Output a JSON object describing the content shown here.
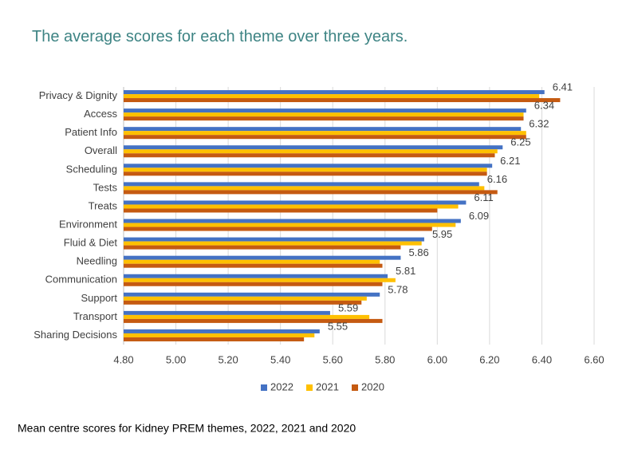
{
  "chart_data": {
    "type": "bar",
    "orientation": "horizontal",
    "title": "The average scores for each theme over three years.",
    "caption": "Mean centre scores for Kidney PREM themes, 2022, 2021 and 2020",
    "categories": [
      "Privacy & Dignity",
      "Access",
      "Patient Info",
      "Overall",
      "Scheduling",
      "Tests",
      "Treats",
      "Environment",
      "Fluid & Diet",
      "Needling",
      "Communication",
      "Support",
      "Transport",
      "Sharing Decisions"
    ],
    "series": [
      {
        "name": "2022",
        "color": "#4472c4",
        "values": [
          6.41,
          6.34,
          6.32,
          6.25,
          6.21,
          6.16,
          6.11,
          6.09,
          5.95,
          5.86,
          5.81,
          5.78,
          5.59,
          5.55
        ]
      },
      {
        "name": "2021",
        "color": "#ffc000",
        "values": [
          6.39,
          6.33,
          6.34,
          6.23,
          6.19,
          6.18,
          6.08,
          6.07,
          5.94,
          5.78,
          5.84,
          5.73,
          5.74,
          5.53
        ]
      },
      {
        "name": "2020",
        "color": "#c55a11",
        "values": [
          6.47,
          6.33,
          6.34,
          6.22,
          6.19,
          6.23,
          6.0,
          5.98,
          5.86,
          5.79,
          5.79,
          5.71,
          5.79,
          5.49
        ]
      }
    ],
    "data_labels_series": "2022",
    "xlim": [
      4.8,
      6.6
    ],
    "xticks": [
      {
        "value": 4.8,
        "label": "4.80"
      },
      {
        "value": 5.0,
        "label": "5.00"
      },
      {
        "value": 5.2,
        "label": "5.20"
      },
      {
        "value": 5.4,
        "label": "5.40"
      },
      {
        "value": 5.6,
        "label": "5.60"
      },
      {
        "value": 5.8,
        "label": "5.80"
      },
      {
        "value": 6.0,
        "label": "6.00"
      },
      {
        "value": 6.2,
        "label": "6.20"
      },
      {
        "value": 6.4,
        "label": "6.40"
      },
      {
        "value": 6.6,
        "label": "6.60"
      }
    ],
    "grid": true,
    "legend": "bottom"
  }
}
